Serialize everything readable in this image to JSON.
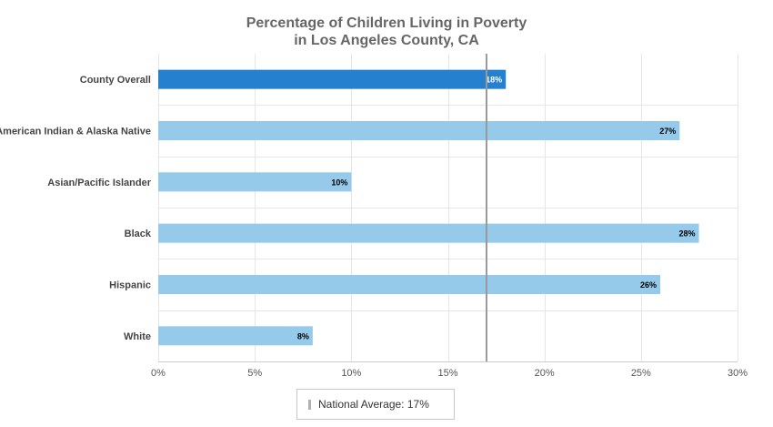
{
  "chart_data": {
    "type": "bar",
    "orientation": "horizontal",
    "title": [
      "Percentage of Children Living in Poverty",
      "in Los Angeles County, CA"
    ],
    "categories": [
      "County Overall",
      "American Indian & Alaska Native",
      "Asian/Pacific Islander",
      "Black",
      "Hispanic",
      "White"
    ],
    "values": [
      18,
      27,
      10,
      28,
      26,
      8
    ],
    "data_labels": [
      "18%",
      "27%",
      "10%",
      "28%",
      "26%",
      "8%"
    ],
    "xlim": [
      0,
      30
    ],
    "x_ticks": [
      0,
      5,
      10,
      15,
      20,
      25,
      30
    ],
    "x_tick_labels": [
      "0%",
      "5%",
      "10%",
      "15%",
      "20%",
      "25%",
      "30%"
    ],
    "grid": true,
    "reference_line": {
      "value": 17,
      "label": "National Average: 17%",
      "color": "#999999"
    },
    "colors": {
      "highlight_bar": "#2580d0",
      "bar": "#95caeb",
      "grid": "#e6e6e6"
    },
    "highlight_category": "County Overall",
    "legend_position": "bottom-center"
  }
}
